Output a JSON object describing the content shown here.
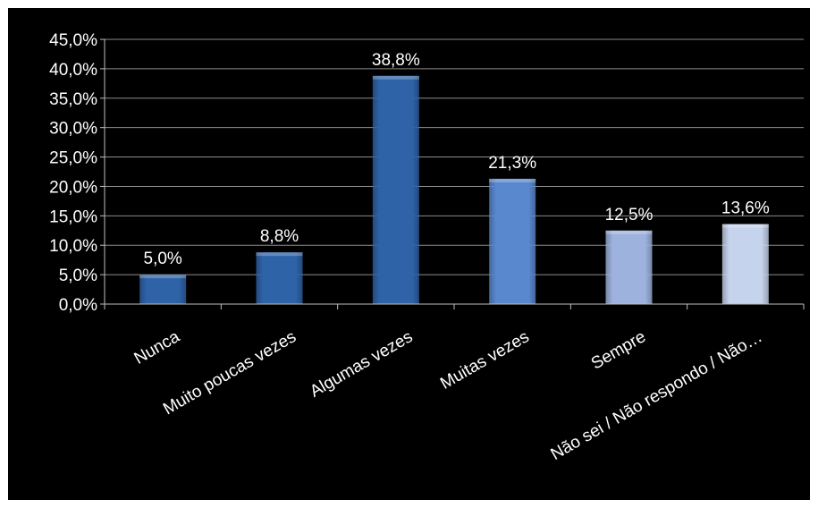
{
  "chart_data": {
    "type": "bar",
    "categories": [
      "Nunca",
      "Muito poucas vezes",
      "Algumas vezes",
      "Muitas vezes",
      "Sempre",
      "Não sei / Não respondo / Não…"
    ],
    "values": [
      5.0,
      8.8,
      38.8,
      21.3,
      12.5,
      13.6
    ],
    "data_labels": [
      "5,0%",
      "8,8%",
      "38,8%",
      "21,3%",
      "12,5%",
      "13,6%"
    ],
    "y_tick_labels": [
      "0,0%",
      "5,0%",
      "10,0%",
      "15,0%",
      "20,0%",
      "25,0%",
      "30,0%",
      "35,0%",
      "40,0%",
      "45,0%"
    ],
    "ylim": [
      0,
      45
    ],
    "y_step": 5,
    "grid": true,
    "legend": "none",
    "background": "#000000",
    "grid_color": "#8c8c8c",
    "axis_color": "#bfbfbf",
    "text_color": "#ffffff",
    "bar_colors": [
      "#2e63a8",
      "#2e63a8",
      "#2e63a8",
      "#5a88cf",
      "#9db2dc",
      "#c6d3ec"
    ],
    "title": "",
    "xlabel": "",
    "ylabel": ""
  }
}
